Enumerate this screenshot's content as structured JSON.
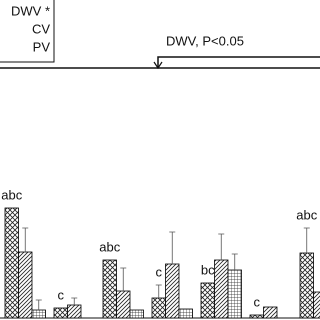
{
  "chart_data": {
    "type": "bar",
    "annotation": "DWV, P<0.05",
    "categories": [
      null,
      null,
      null,
      null,
      null,
      null,
      null
    ],
    "series": [
      {
        "name": "DWV *",
        "color": "#000000",
        "hatch": "cross",
        "values": [
          55,
          5,
          29,
          10,
          17.5,
          1.5,
          32.5
        ],
        "errors": [
          null,
          null,
          null,
          6.5,
          null,
          null,
          12.5
        ]
      },
      {
        "name": "CV",
        "color": "#000000",
        "hatch": "diagonal",
        "values": [
          33,
          6.5,
          13.5,
          27,
          29,
          5.5,
          13
        ],
        "errors": [
          12,
          3.5,
          11.5,
          16,
          13,
          null,
          null
        ]
      },
      {
        "name": "PV",
        "color": "#000000",
        "hatch": "grid",
        "values": [
          4,
          null,
          4,
          4.5,
          24,
          null,
          null
        ],
        "errors": [
          5,
          null,
          null,
          null,
          8,
          null,
          null
        ]
      }
    ],
    "group_labels": [
      "abc",
      "c",
      "abc",
      "c",
      "bc",
      "c",
      "abc"
    ],
    "ylim": [
      0,
      110
    ]
  }
}
